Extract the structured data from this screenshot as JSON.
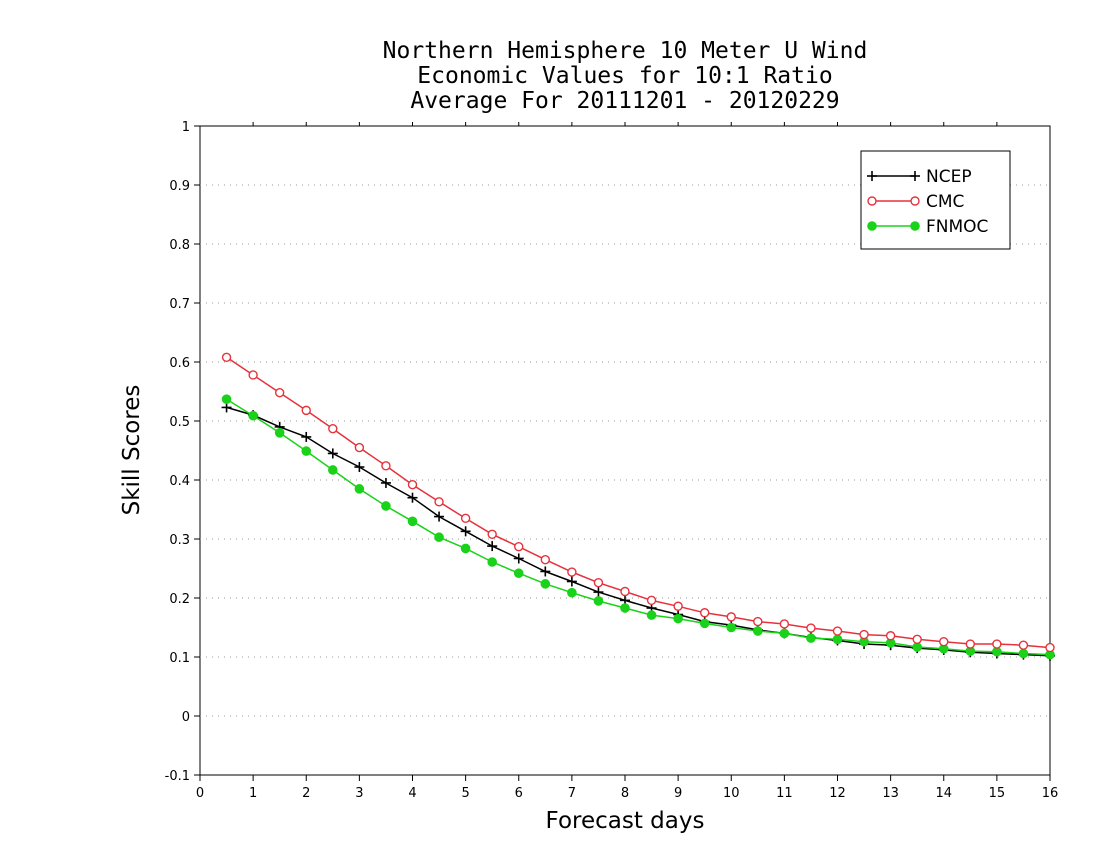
{
  "chart_data": {
    "type": "line",
    "title_lines": [
      "Northern Hemisphere 10 Meter U Wind",
      "Economic Values for 10:1 Ratio",
      "Average For 20111201 - 20120229"
    ],
    "xlabel": "Forecast days",
    "ylabel": "Skill Scores",
    "xlim": [
      0,
      16
    ],
    "ylim": [
      -0.1,
      1
    ],
    "xticks": [
      "0",
      "1",
      "2",
      "3",
      "4",
      "5",
      "6",
      "7",
      "8",
      "9",
      "10",
      "11",
      "12",
      "13",
      "14",
      "15",
      "16"
    ],
    "yticks": [
      "-0.1",
      "0",
      "0.1",
      "0.2",
      "0.3",
      "0.4",
      "0.5",
      "0.6",
      "0.7",
      "0.8",
      "0.9",
      "1"
    ],
    "grid": "horizontal dotted",
    "legend_position": "top-right",
    "x": [
      0.5,
      1,
      1.5,
      2,
      2.5,
      3,
      3.5,
      4,
      4.5,
      5,
      5.5,
      6,
      6.5,
      7,
      7.5,
      8,
      8.5,
      9,
      9.5,
      10,
      10.5,
      11,
      11.5,
      12,
      12.5,
      13,
      13.5,
      14,
      14.5,
      15,
      15.5,
      16
    ],
    "series": [
      {
        "name": "NCEP",
        "color": "#000000",
        "marker": "plus",
        "values": [
          0.523,
          0.51,
          0.49,
          0.473,
          0.445,
          0.422,
          0.395,
          0.37,
          0.338,
          0.313,
          0.288,
          0.267,
          0.245,
          0.228,
          0.21,
          0.196,
          0.183,
          0.172,
          0.16,
          0.154,
          0.146,
          0.14,
          0.133,
          0.128,
          0.122,
          0.12,
          0.115,
          0.112,
          0.108,
          0.106,
          0.104,
          0.102
        ]
      },
      {
        "name": "CMC",
        "color": "#e6323c",
        "marker": "open-circle",
        "values": [
          0.608,
          0.578,
          0.548,
          0.518,
          0.487,
          0.455,
          0.424,
          0.392,
          0.363,
          0.335,
          0.308,
          0.287,
          0.265,
          0.244,
          0.226,
          0.211,
          0.196,
          0.186,
          0.175,
          0.168,
          0.16,
          0.156,
          0.149,
          0.144,
          0.138,
          0.136,
          0.13,
          0.126,
          0.122,
          0.122,
          0.12,
          0.116
        ]
      },
      {
        "name": "FNMOC",
        "color": "#19d219",
        "marker": "filled-circle",
        "values": [
          0.537,
          0.509,
          0.48,
          0.449,
          0.417,
          0.385,
          0.356,
          0.33,
          0.303,
          0.284,
          0.261,
          0.242,
          0.224,
          0.209,
          0.195,
          0.183,
          0.171,
          0.165,
          0.157,
          0.15,
          0.144,
          0.14,
          0.132,
          0.13,
          0.126,
          0.124,
          0.117,
          0.114,
          0.11,
          0.109,
          0.106,
          0.104
        ]
      }
    ]
  }
}
